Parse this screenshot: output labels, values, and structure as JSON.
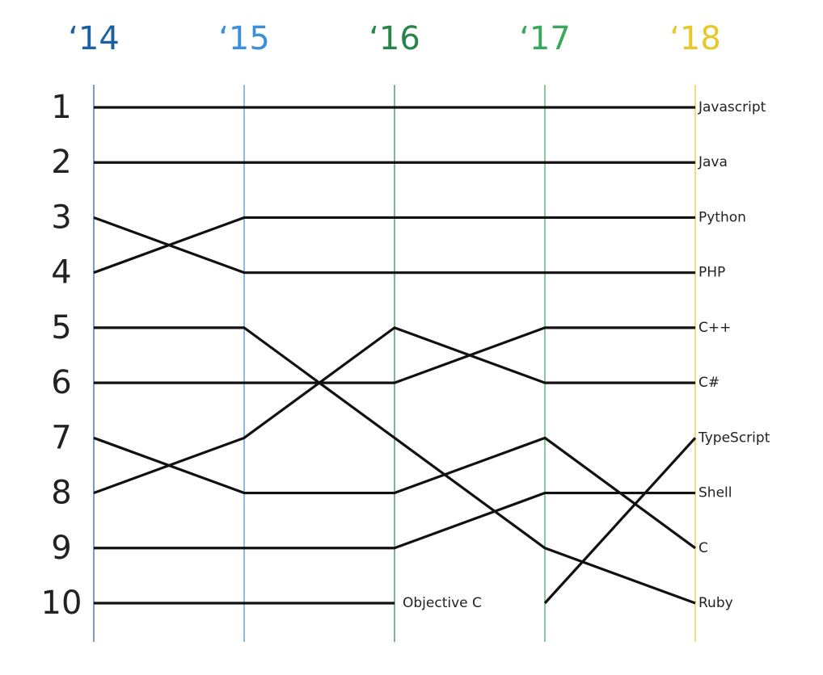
{
  "chart_data": {
    "type": "bump",
    "categories": [
      "‘14",
      "‘15",
      "‘16",
      "‘17",
      "‘18"
    ],
    "category_colors": [
      "#1b5fa6",
      "#3b90d9",
      "#27854a",
      "#3aa85a",
      "#e6c829"
    ],
    "ylim": [
      1,
      10
    ],
    "y_inverted": true,
    "yticks": [
      1,
      2,
      3,
      4,
      5,
      6,
      7,
      8,
      9,
      10
    ],
    "series": [
      {
        "name": "Javascript",
        "color": "#111111",
        "values": [
          1,
          1,
          1,
          1,
          1
        ]
      },
      {
        "name": "Java",
        "color": "#111111",
        "values": [
          2,
          2,
          2,
          2,
          2
        ]
      },
      {
        "name": "Python",
        "color": "#111111",
        "values": [
          4,
          3,
          3,
          3,
          3
        ]
      },
      {
        "name": "PHP",
        "color": "#111111",
        "values": [
          3,
          4,
          4,
          4,
          4
        ]
      },
      {
        "name": "C++",
        "color": "#111111",
        "values": [
          6,
          6,
          6,
          5,
          5
        ]
      },
      {
        "name": "C#",
        "color": "#111111",
        "values": [
          8,
          7,
          5,
          6,
          6
        ]
      },
      {
        "name": "TypeScript",
        "color": "#111111",
        "values": [
          null,
          null,
          null,
          10,
          7
        ]
      },
      {
        "name": "Shell",
        "color": "#111111",
        "values": [
          9,
          9,
          9,
          8,
          8
        ]
      },
      {
        "name": "C",
        "color": "#111111",
        "values": [
          7,
          8,
          8,
          7,
          9
        ]
      },
      {
        "name": "Ruby",
        "color": "#111111",
        "values": [
          5,
          5,
          7,
          9,
          10
        ]
      },
      {
        "name": "Objective C",
        "color": "#111111",
        "values": [
          10,
          10,
          10,
          null,
          null
        ]
      }
    ]
  }
}
